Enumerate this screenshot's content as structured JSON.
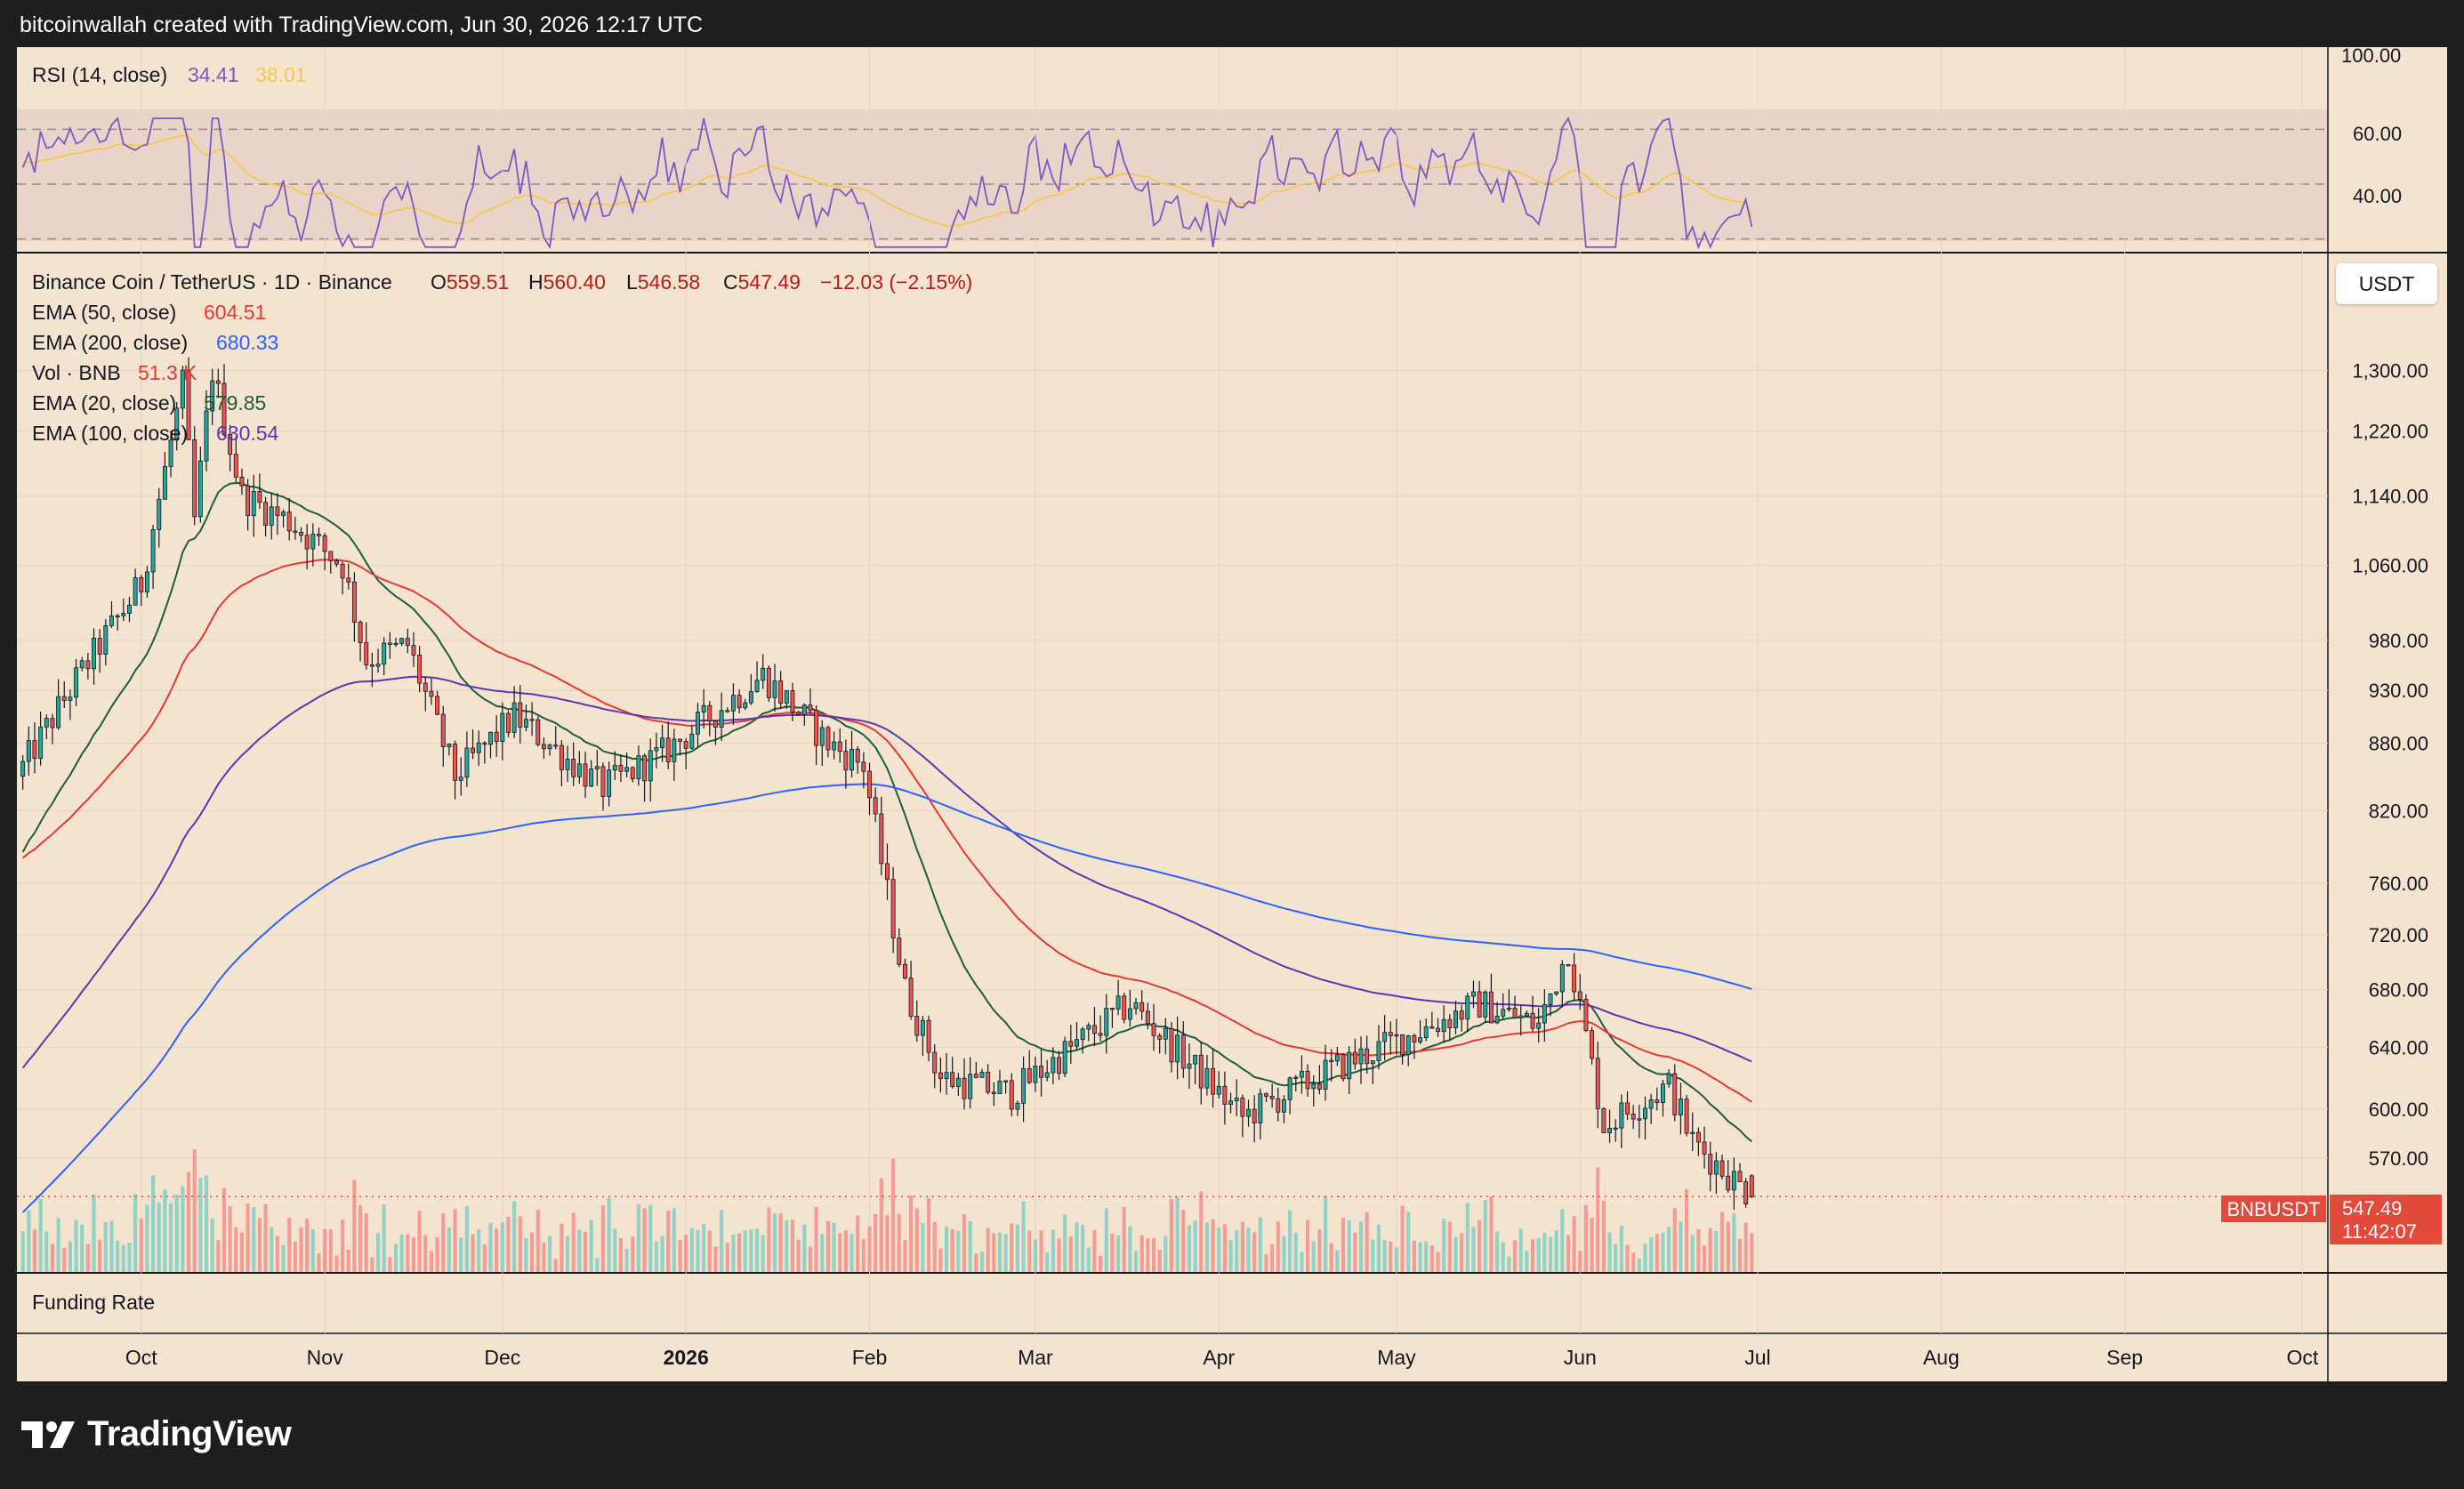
{
  "header": {
    "attribution": "bitcoinwallah created with TradingView.com, Jun 30, 2026 12:17 UTC"
  },
  "rsi": {
    "label": "RSI (14, close)",
    "value": "34.41",
    "ma_value": "38.01",
    "ticks": [
      "100.00",
      "60.00",
      "40.00"
    ],
    "color": "#7e57c2",
    "ma_color": "#f2c94c"
  },
  "legend": {
    "symbol": "Binance Coin / TetherUS · 1D · Binance",
    "open_label": "O",
    "open": "559.51",
    "high_label": "H",
    "high": "560.40",
    "low_label": "L",
    "low": "546.58",
    "close_label": "C",
    "close": "547.49",
    "change": "−12.03 (−2.15%)",
    "indicators": [
      {
        "label": "EMA (50, close)",
        "value": "604.51",
        "color": "#e53935"
      },
      {
        "label": "EMA (200, close)",
        "value": "680.33",
        "color": "#2962ff"
      },
      {
        "label": "Vol · BNB",
        "value": "51.3 K",
        "color": "#e53935"
      },
      {
        "label": "EMA (20, close)",
        "value": "579.85",
        "color": "#1b5e3b"
      },
      {
        "label": "EMA (100, close)",
        "value": "630.54",
        "color": "#5e35b1"
      }
    ]
  },
  "currency_button": "USDT",
  "price_axis": [
    "1,300.00",
    "1,220.00",
    "1,140.00",
    "1,060.00",
    "980.00",
    "930.00",
    "880.00",
    "820.00",
    "760.00",
    "720.00",
    "680.00",
    "640.00",
    "600.00",
    "570.00"
  ],
  "last_price": {
    "symbol": "BNBUSDT",
    "price": "547.49",
    "countdown": "11:42:07",
    "color": "#e04b3b"
  },
  "funding_label": "Funding Rate",
  "time_axis": [
    "Oct",
    "Nov",
    "Dec",
    "2026",
    "Feb",
    "Mar",
    "Apr",
    "May",
    "Jun",
    "Jul",
    "Aug",
    "Sep",
    "Oct"
  ],
  "footer": {
    "brand": "TradingView"
  },
  "chart_data": {
    "type": "candlestick",
    "title": "Binance Coin / TetherUS · 1D · Binance",
    "y_scale": "log",
    "ylim": [
      540,
      1320
    ],
    "x_range": [
      "2025-09-10",
      "2026-10-02"
    ],
    "colors": {
      "up": "#26a69a",
      "down": "#ef5350"
    },
    "waypoints": [
      [
        "2025-09-10",
        850
      ],
      [
        "2025-09-20",
        940
      ],
      [
        "2025-10-01",
        1040
      ],
      [
        "2025-10-08",
        1280
      ],
      [
        "2025-10-10",
        1110
      ],
      [
        "2025-10-13",
        1300
      ],
      [
        "2025-10-18",
        1140
      ],
      [
        "2025-10-26",
        1110
      ],
      [
        "2025-11-04",
        1060
      ],
      [
        "2025-11-08",
        960
      ],
      [
        "2025-11-15",
        975
      ],
      [
        "2025-11-23",
        850
      ],
      [
        "2025-12-03",
        905
      ],
      [
        "2025-12-18",
        840
      ],
      [
        "2025-12-28",
        870
      ],
      [
        "2026-01-14",
        945
      ],
      [
        "2026-01-25",
        880
      ],
      [
        "2026-01-31",
        860
      ],
      [
        "2026-02-07",
        680
      ],
      [
        "2026-02-13",
        620
      ],
      [
        "2026-02-25",
        610
      ],
      [
        "2026-03-17",
        670
      ],
      [
        "2026-04-05",
        595
      ],
      [
        "2026-04-20",
        625
      ],
      [
        "2026-05-15",
        670
      ],
      [
        "2026-05-25",
        655
      ],
      [
        "2026-05-30",
        710
      ],
      [
        "2026-06-05",
        590
      ],
      [
        "2026-06-16",
        615
      ],
      [
        "2026-06-20",
        580
      ],
      [
        "2026-06-30",
        547.49
      ]
    ],
    "emas": [
      {
        "name": "EMA (20, close)",
        "period": 20,
        "last": 579.85,
        "color": "#1b5e3b"
      },
      {
        "name": "EMA (50, close)",
        "period": 50,
        "last": 604.51,
        "color": "#e53935"
      },
      {
        "name": "EMA (100, close)",
        "period": 100,
        "last": 630.54,
        "color": "#5e35b1"
      },
      {
        "name": "EMA (200, close)",
        "period": 200,
        "last": 680.33,
        "color": "#2962ff"
      }
    ],
    "volume": {
      "name": "Vol · BNB",
      "last": "51.3 K"
    },
    "rsi": {
      "period": 14,
      "last": 34.41,
      "ma_last": 38.01,
      "levels": [
        70,
        50,
        30
      ],
      "ylim": [
        25,
        100
      ]
    }
  }
}
